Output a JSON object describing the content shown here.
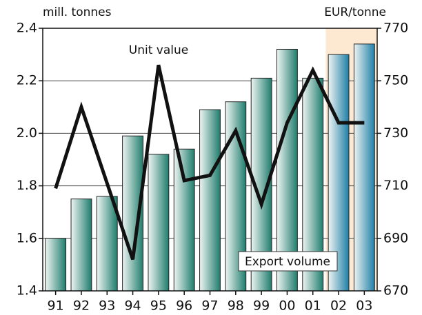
{
  "chart_data": {
    "type": "bar_line",
    "y_label": "mill. tonnes",
    "y2_label": "EUR/tonne",
    "categories": [
      "91",
      "92",
      "93",
      "94",
      "95",
      "96",
      "97",
      "98",
      "99",
      "00",
      "01",
      "02",
      "03"
    ],
    "series": [
      {
        "name": "Export volume",
        "type": "bar",
        "colors": [
          "#1f7d6d",
          "#1f7d6d",
          "#1f7d6d",
          "#1f7d6d",
          "#1f7d6d",
          "#1f7d6d",
          "#1f7d6d",
          "#1f7d6d",
          "#1f7d6d",
          "#1f7d6d",
          "#1f7d6d",
          "#1f7fa8",
          "#1f7fa8"
        ],
        "values": [
          1.6,
          1.75,
          1.76,
          1.99,
          1.92,
          1.94,
          2.09,
          2.12,
          2.21,
          2.32,
          2.21,
          2.3,
          2.34
        ]
      },
      {
        "name": "Unit value",
        "type": "line",
        "axis": "y2",
        "color": "#111111",
        "values": [
          709,
          740,
          711,
          682,
          756,
          712,
          714,
          731,
          703,
          734,
          754,
          734,
          734
        ]
      }
    ],
    "ylim": [
      1.4,
      2.4
    ],
    "yticks": [
      1.4,
      1.6,
      1.8,
      {
        "value": 2.0,
        "label": "2.0"
      },
      2.2,
      2.4
    ],
    "y2lim": [
      670,
      770
    ],
    "y2ticks": [
      670,
      690,
      710,
      730,
      750,
      770
    ],
    "grid": true,
    "shading": {
      "start": 11,
      "color": "#fde9d2"
    }
  }
}
